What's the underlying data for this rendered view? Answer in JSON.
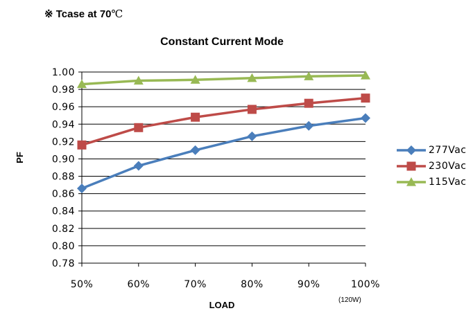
{
  "header": {
    "note_prefix": "※ Tcase at 70",
    "note_unit": "℃"
  },
  "chart_data": {
    "type": "line",
    "title": "Constant Current Mode",
    "xlabel": "LOAD",
    "ylabel": "PF",
    "x_note": "(120W)",
    "categories": [
      "50%",
      "60%",
      "70%",
      "80%",
      "90%",
      "100%"
    ],
    "ylim": [
      0.78,
      1.0
    ],
    "yticks": [
      "0.78",
      "0.80",
      "0.82",
      "0.84",
      "0.86",
      "0.88",
      "0.90",
      "0.92",
      "0.94",
      "0.96",
      "0.98",
      "1.00"
    ],
    "grid": true,
    "legend_position": "right",
    "series": [
      {
        "name": "277Vac",
        "color": "#4a7ebb",
        "marker": "diamond",
        "values": [
          0.866,
          0.892,
          0.91,
          0.926,
          0.938,
          0.947
        ]
      },
      {
        "name": "230Vac",
        "color": "#be4b48",
        "marker": "square",
        "values": [
          0.916,
          0.936,
          0.948,
          0.957,
          0.964,
          0.97
        ]
      },
      {
        "name": "115Vac",
        "color": "#98b954",
        "marker": "triangle",
        "values": [
          0.986,
          0.99,
          0.991,
          0.993,
          0.995,
          0.996
        ]
      }
    ]
  }
}
